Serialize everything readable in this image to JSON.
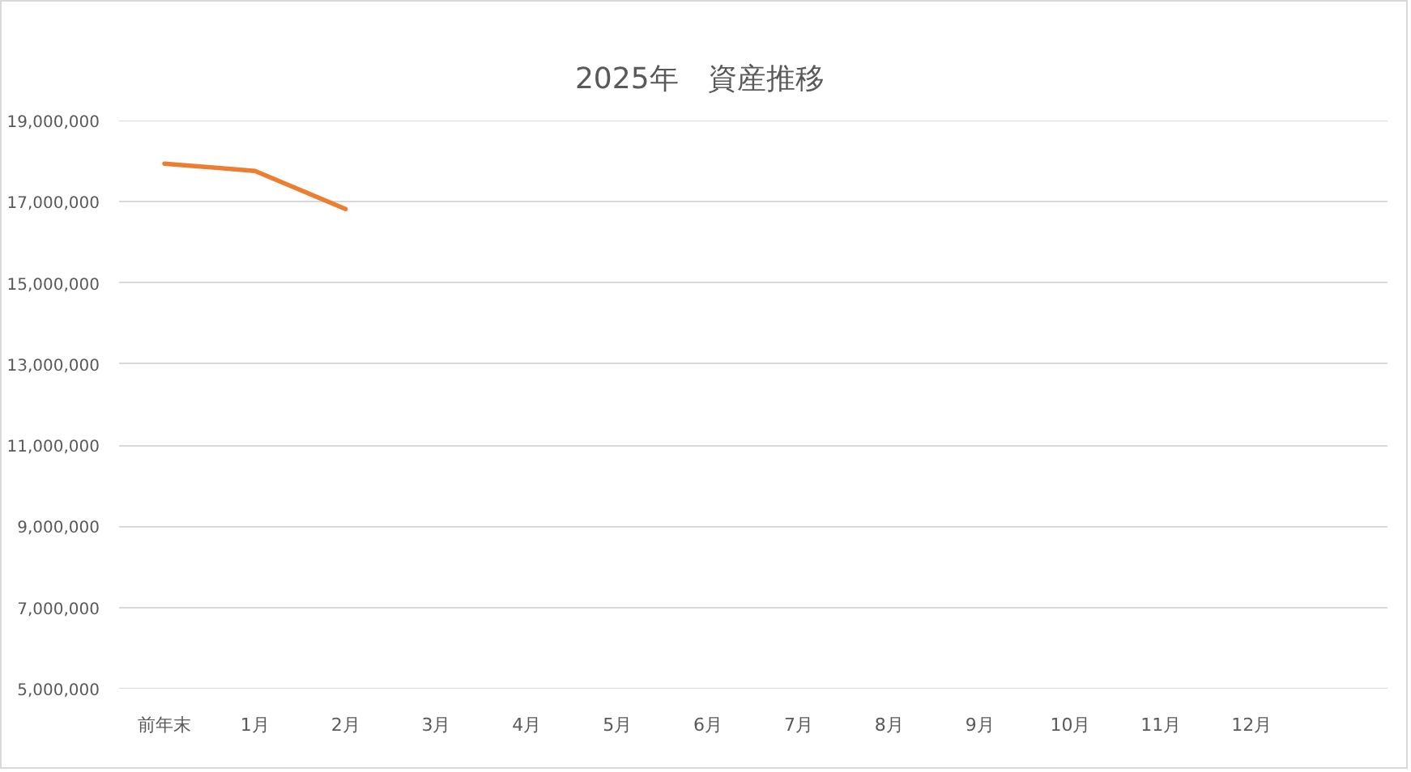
{
  "chart_data": {
    "type": "line",
    "title": "2025年　資産推移",
    "categories": [
      "前年末",
      "1月",
      "2月",
      "3月",
      "4月",
      "5月",
      "6月",
      "7月",
      "8月",
      "9月",
      "10月",
      "11月",
      "12月",
      null
    ],
    "series": [
      {
        "color": "#ed7d31",
        "values": [
          17940000,
          17760000,
          16820000,
          null,
          null,
          null,
          null,
          null,
          null,
          null,
          null,
          null,
          null,
          null
        ]
      }
    ],
    "ylim": [
      5000000,
      19000000
    ],
    "yticks": [
      {
        "value": 5000000,
        "label": "5,000,000"
      },
      {
        "value": 7000000,
        "label": "7,000,000"
      },
      {
        "value": 9000000,
        "label": "9,000,000"
      },
      {
        "value": 11000000,
        "label": "11,000,000"
      },
      {
        "value": 13000000,
        "label": "13,000,000"
      },
      {
        "value": 15000000,
        "label": "15,000,000"
      },
      {
        "value": 17000000,
        "label": "17,000,000"
      },
      {
        "value": 19000000,
        "label": "19,000,000"
      }
    ],
    "grid": "y",
    "line_style": "solid"
  }
}
